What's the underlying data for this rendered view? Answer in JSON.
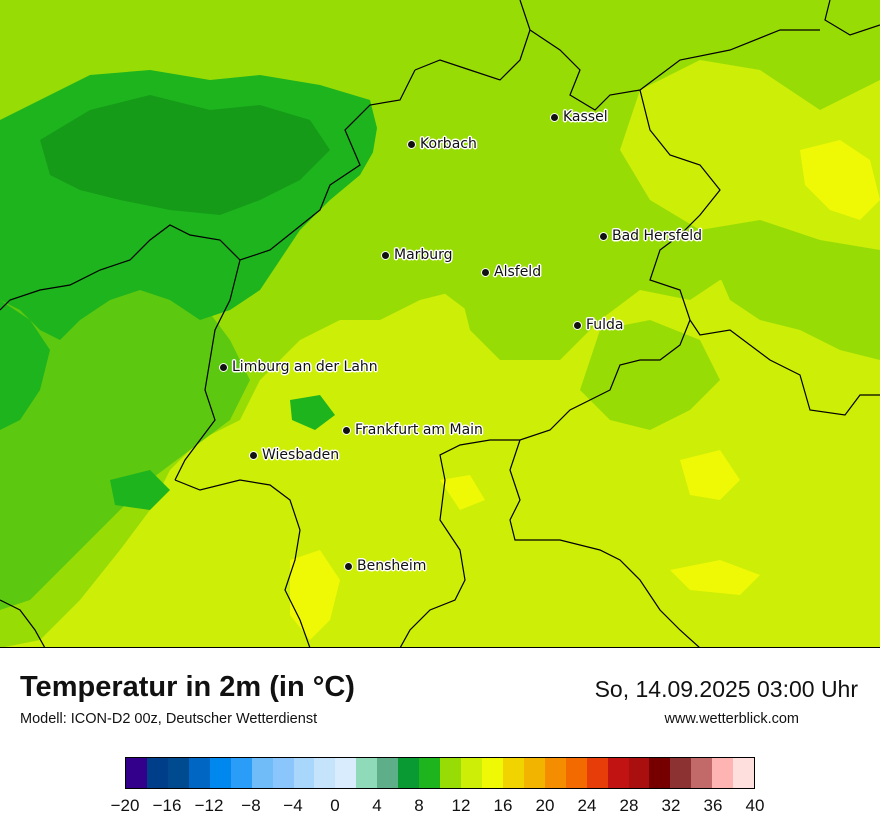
{
  "title": "Temperatur in 2m (in °C)",
  "subtitle": "Modell: ICON-D2 00z, Deutscher Wetterdienst",
  "datetime": "So, 14.09.2025 03:00 Uhr",
  "website": "www.wetterblick.com",
  "cities": [
    {
      "id": "kassel",
      "label": "Kassel"
    },
    {
      "id": "korbach",
      "label": "Korbach"
    },
    {
      "id": "bad-hersfeld",
      "label": "Bad Hersfeld"
    },
    {
      "id": "marburg",
      "label": "Marburg"
    },
    {
      "id": "alsfeld",
      "label": "Alsfeld"
    },
    {
      "id": "fulda",
      "label": "Fulda"
    },
    {
      "id": "limburg",
      "label": "Limburg an der Lahn"
    },
    {
      "id": "frankfurt",
      "label": "Frankfurt am Main"
    },
    {
      "id": "wiesbaden",
      "label": "Wiesbaden"
    },
    {
      "id": "bensheim",
      "label": "Bensheim"
    }
  ],
  "colorbar": {
    "min": -20,
    "max": 40,
    "step": 2,
    "tick_labels": [
      "−20",
      "−16",
      "−12",
      "−8",
      "−4",
      "0",
      "4",
      "8",
      "12",
      "16",
      "20",
      "24",
      "28",
      "32",
      "36",
      "40"
    ],
    "colors": [
      "#33008c",
      "#003e8a",
      "#004a8f",
      "#0066c4",
      "#0088ee",
      "#2a9df8",
      "#6fbcf8",
      "#8ac6fb",
      "#a9d7fb",
      "#c5e3fb",
      "#d9ecfd",
      "#8fdab9",
      "#5fae8a",
      "#0a9a34",
      "#1db41e",
      "#98dc06",
      "#cdee07",
      "#eff905",
      "#f1d300",
      "#f3b400",
      "#f48d00",
      "#f36a00",
      "#e73d08",
      "#c21313",
      "#aa0f0f",
      "#760000",
      "#8c3232",
      "#c26969",
      "#ffb4b4",
      "#ffdede"
    ]
  },
  "map_colors": {
    "green_dark": "#1db41e",
    "green_darker": "#159b18",
    "green_mid": "#5cc80f",
    "green_light": "#98dc06",
    "lime": "#cdee07",
    "yellow": "#eff905",
    "border": "#000000"
  }
}
